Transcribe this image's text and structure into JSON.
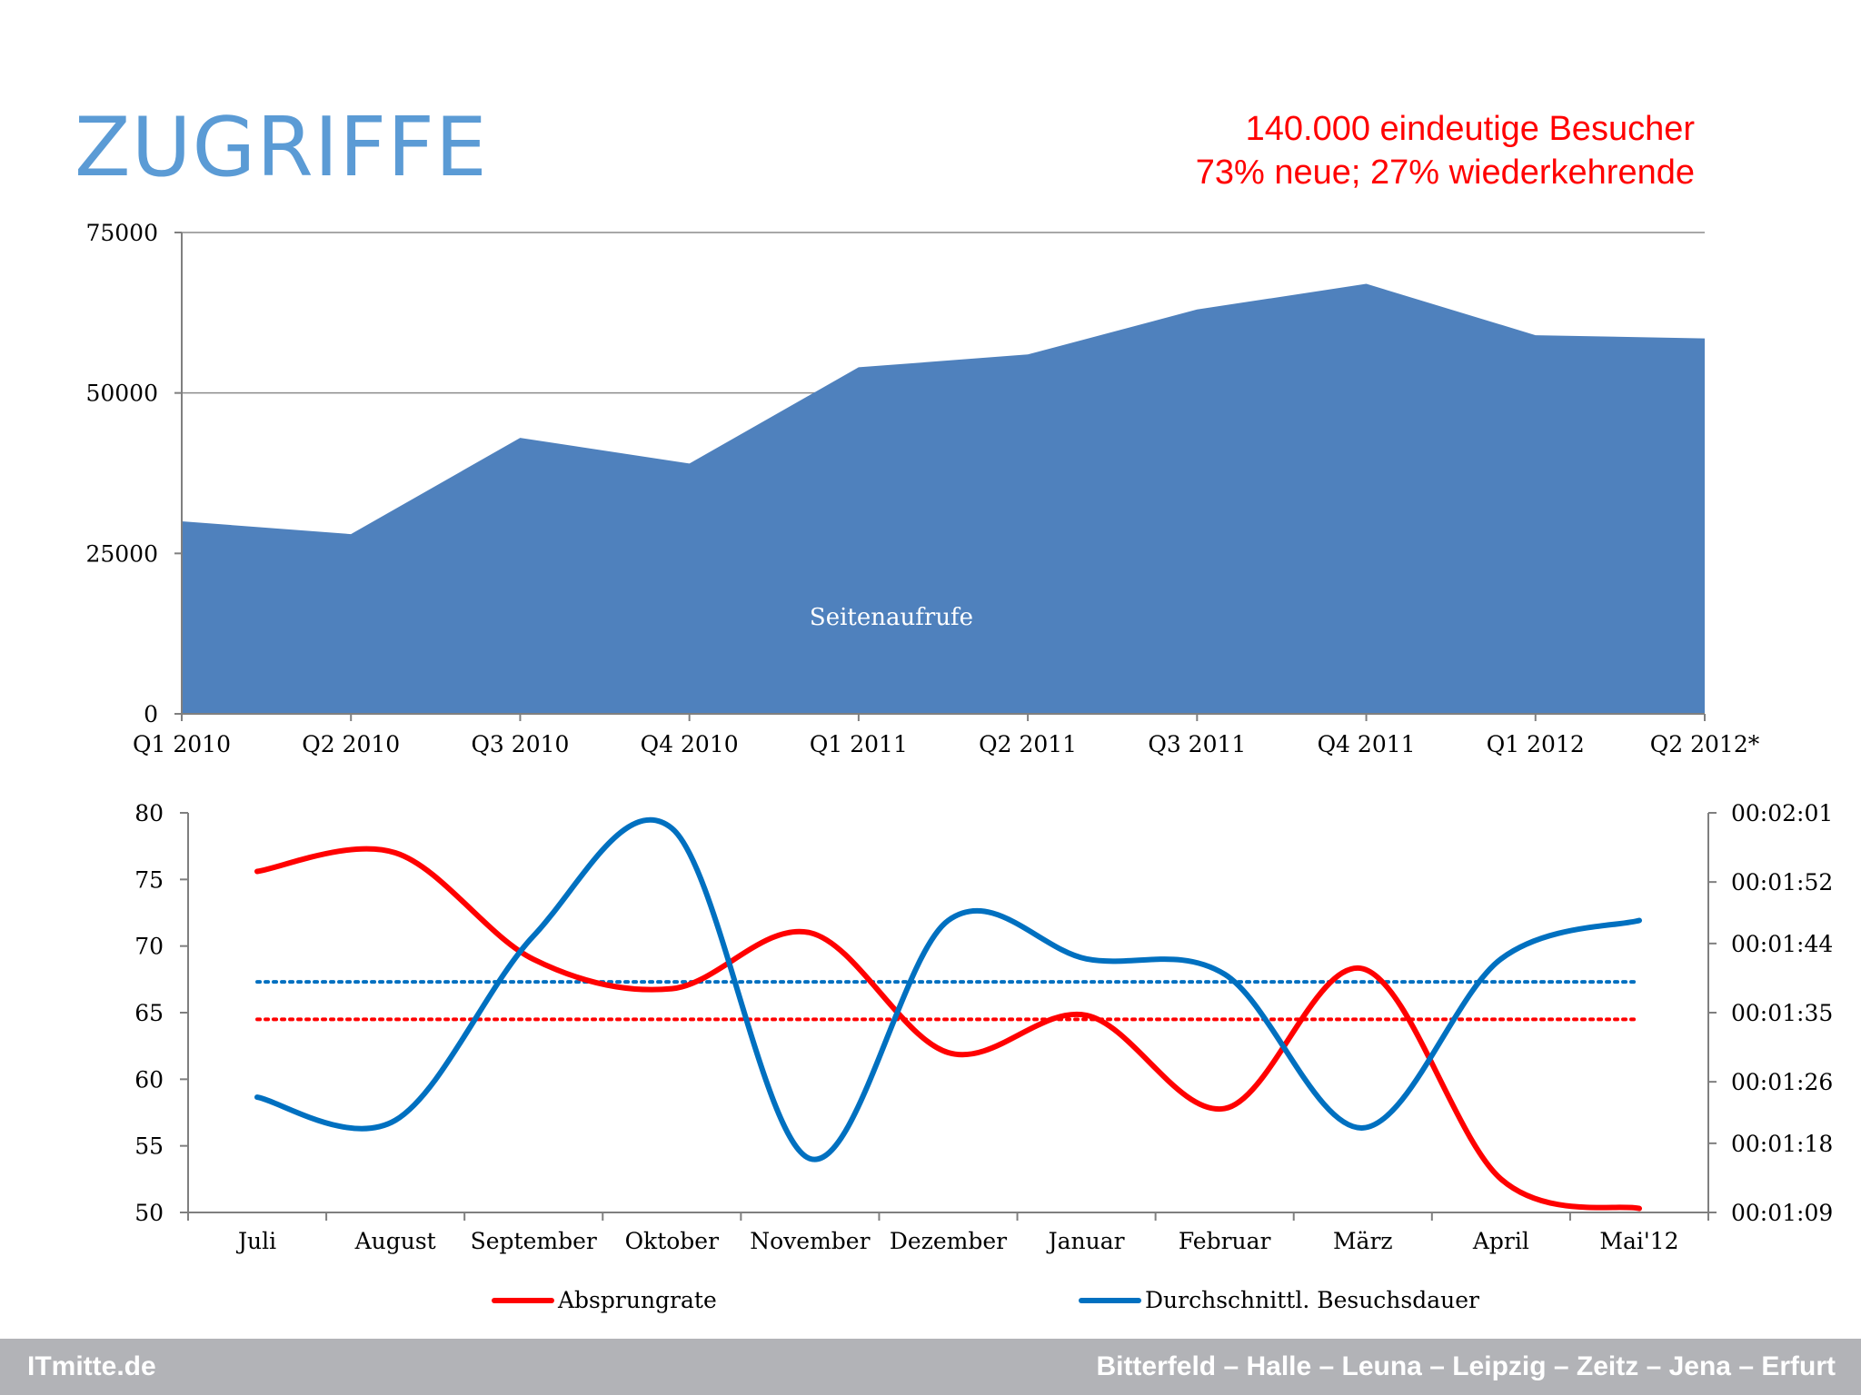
{
  "header": {
    "title": "ZUGRIFFE",
    "stat_line1": "140.000 eindeutige Besucher",
    "stat_line2": "73% neue; 27% wiederkehrende"
  },
  "footer": {
    "brand": "ITmitte.de",
    "cities": "Bitterfeld – Halle – Leuna – Leipzig – Zeitz – Jena – Erfurt"
  },
  "chart_data": [
    {
      "type": "area",
      "categories": [
        "Q1 2010",
        "Q2 2010",
        "Q3 2010",
        "Q4 2010",
        "Q1 2011",
        "Q2 2011",
        "Q3 2011",
        "Q4 2011",
        "Q1 2012",
        "Q2 2012*"
      ],
      "series": [
        {
          "name": "Seitenaufrufe",
          "values": [
            30000,
            28000,
            43000,
            39000,
            54000,
            56000,
            63000,
            67000,
            59000,
            58500
          ],
          "color": "#4f81bd"
        }
      ],
      "yticks": [
        0,
        25000,
        50000,
        75000
      ],
      "ylim": [
        0,
        75000
      ],
      "grid": true
    },
    {
      "type": "line",
      "categories": [
        "Juli",
        "August",
        "September",
        "Oktober",
        "November",
        "Dezember",
        "Januar",
        "Februar",
        "März",
        "April",
        "Mai'12"
      ],
      "series": [
        {
          "name": "Absprungrate",
          "axis": "left",
          "color": "#ff0000",
          "values": [
            75.6,
            77.0,
            69.0,
            66.8,
            71.0,
            62.0,
            64.8,
            57.8,
            68.3,
            52.5,
            50.3
          ]
        },
        {
          "name": "Durchschnittl. Besuchsdauer",
          "axis": "right",
          "color": "#0070c0",
          "values": [
            "00:01:24",
            "00:01:21",
            "00:01:45",
            "00:01:59",
            "00:01:16",
            "00:01:47",
            "00:01:42",
            "00:01:40",
            "00:01:20",
            "00:01:42",
            "00:01:47"
          ]
        }
      ],
      "reference_lines": [
        {
          "series": "Absprungrate",
          "value": 64.5,
          "color": "#ff0000",
          "style": "dotted"
        },
        {
          "series": "Durchschnittl. Besuchsdauer",
          "value": "00:01:39",
          "color": "#0070c0",
          "style": "dotted"
        }
      ],
      "y_left_ticks": [
        50,
        55,
        60,
        65,
        70,
        75,
        80
      ],
      "ylim_left": [
        50,
        80
      ],
      "y_right_ticks": [
        "00:01:09",
        "00:01:18",
        "00:01:26",
        "00:01:35",
        "00:01:44",
        "00:01:52",
        "00:02:01"
      ],
      "ylim_right": [
        "00:01:09",
        "00:02:01"
      ],
      "legend": "bottom",
      "grid": false
    }
  ]
}
